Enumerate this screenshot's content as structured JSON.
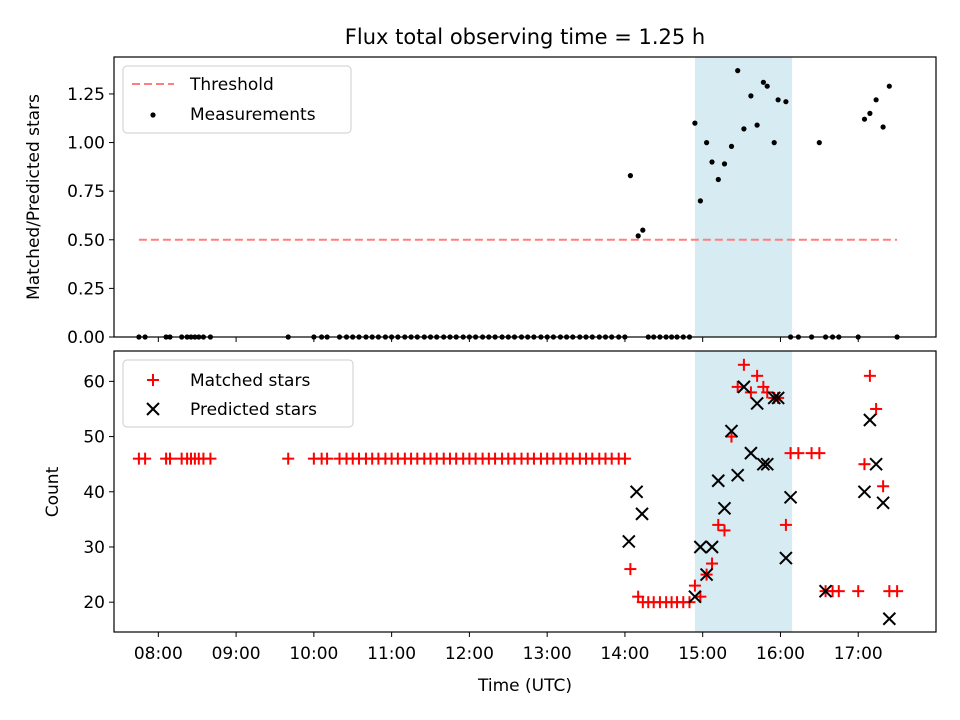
{
  "figure_title": "Flux total observing time = 1.25 h",
  "colors": {
    "threshold": "#ff7f7f",
    "measurement": "#000000",
    "matched": "#ff0000",
    "predicted": "#000000",
    "span_fill": "#add8e6"
  },
  "chart_data": [
    {
      "type": "scatter",
      "panel": "top",
      "title": "Flux total observing time = 1.25 h",
      "xlabel": "",
      "ylabel": "Matched/Predicted stars",
      "xlim": [
        7.43,
        18.0
      ],
      "ylim": [
        0,
        1.44
      ],
      "yticks": [
        0,
        0.25,
        0.5,
        0.75,
        1.0,
        1.25
      ],
      "ytick_labels": [
        "0.00",
        "0.25",
        "0.50",
        "0.75",
        "1.00",
        "1.25"
      ],
      "legend": {
        "position": "top-left",
        "entries": [
          "Threshold",
          "Measurements"
        ]
      },
      "highlight_span": {
        "x": [
          14.9,
          16.15
        ]
      },
      "threshold": {
        "name": "Threshold",
        "y": 0.5,
        "x": [
          7.75,
          17.5
        ]
      },
      "series": [
        {
          "name": "Measurements",
          "x": [
            7.75,
            7.83,
            8.1,
            8.15,
            8.3,
            8.37,
            8.42,
            8.47,
            8.52,
            8.58,
            8.67,
            9.67,
            10.0,
            10.1,
            10.17,
            10.33,
            10.42,
            10.5,
            10.58,
            10.67,
            10.75,
            10.83,
            10.92,
            11.0,
            11.08,
            11.17,
            11.25,
            11.33,
            11.42,
            11.5,
            11.58,
            11.67,
            11.75,
            11.83,
            11.92,
            12.0,
            12.08,
            12.17,
            12.25,
            12.33,
            12.42,
            12.5,
            12.58,
            12.67,
            12.75,
            12.83,
            12.92,
            13.0,
            13.08,
            13.17,
            13.25,
            13.33,
            13.42,
            13.5,
            13.58,
            13.67,
            13.75,
            13.83,
            13.92,
            14.0,
            14.07,
            14.17,
            14.23,
            14.3,
            14.37,
            14.45,
            14.53,
            14.6,
            14.67,
            14.75,
            14.83,
            14.9,
            14.97,
            15.05,
            15.12,
            15.2,
            15.28,
            15.37,
            15.45,
            15.53,
            15.62,
            15.7,
            15.78,
            15.83,
            15.92,
            15.97,
            16.07,
            16.13,
            16.23,
            16.4,
            16.5,
            16.58,
            16.67,
            16.75,
            17.0,
            17.08,
            17.15,
            17.23,
            17.32,
            17.4,
            17.5
          ],
          "y": [
            0,
            0,
            0,
            0,
            0,
            0,
            0,
            0,
            0,
            0,
            0,
            0,
            0,
            0,
            0,
            0,
            0,
            0,
            0,
            0,
            0,
            0,
            0,
            0,
            0,
            0,
            0,
            0,
            0,
            0,
            0,
            0,
            0,
            0,
            0,
            0,
            0,
            0,
            0,
            0,
            0,
            0,
            0,
            0,
            0,
            0,
            0,
            0,
            0,
            0,
            0,
            0,
            0,
            0,
            0,
            0,
            0,
            0,
            0,
            0,
            0.83,
            0.52,
            0.55,
            0,
            0,
            0,
            0,
            0,
            0,
            0,
            0,
            1.1,
            0.7,
            1.0,
            0.9,
            0.81,
            0.89,
            0.98,
            1.37,
            1.07,
            1.24,
            1.09,
            1.31,
            1.29,
            1.0,
            1.22,
            1.21,
            0,
            0,
            0,
            1.0,
            0,
            0,
            0,
            0,
            1.12,
            1.15,
            1.22,
            1.08,
            1.29,
            0
          ]
        }
      ]
    },
    {
      "type": "scatter",
      "panel": "bottom",
      "title": "",
      "xlabel": "Time (UTC)",
      "ylabel": "Count",
      "xlim": [
        7.43,
        18.0
      ],
      "ylim": [
        14.6,
        65.5
      ],
      "xticks": [
        8,
        9,
        10,
        11,
        12,
        13,
        14,
        15,
        16,
        17
      ],
      "xtick_labels": [
        "08:00",
        "09:00",
        "10:00",
        "11:00",
        "12:00",
        "13:00",
        "14:00",
        "15:00",
        "16:00",
        "17:00"
      ],
      "yticks": [
        20,
        30,
        40,
        50,
        60
      ],
      "ytick_labels": [
        "20",
        "30",
        "40",
        "50",
        "60"
      ],
      "legend": {
        "position": "top-left",
        "entries": [
          "Matched stars",
          "Predicted stars"
        ]
      },
      "highlight_span": {
        "x": [
          14.9,
          16.15
        ]
      },
      "series": [
        {
          "name": "Matched stars",
          "marker": "+",
          "x": [
            7.75,
            7.83,
            8.1,
            8.15,
            8.3,
            8.37,
            8.42,
            8.47,
            8.52,
            8.58,
            8.67,
            9.67,
            10.0,
            10.1,
            10.17,
            10.33,
            10.42,
            10.5,
            10.58,
            10.67,
            10.75,
            10.83,
            10.92,
            11.0,
            11.08,
            11.17,
            11.25,
            11.33,
            11.42,
            11.5,
            11.58,
            11.67,
            11.75,
            11.83,
            11.92,
            12.0,
            12.08,
            12.17,
            12.25,
            12.33,
            12.42,
            12.5,
            12.58,
            12.67,
            12.75,
            12.83,
            12.92,
            13.0,
            13.08,
            13.17,
            13.25,
            13.33,
            13.42,
            13.5,
            13.58,
            13.67,
            13.75,
            13.83,
            13.92,
            14.0,
            14.07,
            14.17,
            14.23,
            14.3,
            14.37,
            14.45,
            14.53,
            14.6,
            14.67,
            14.75,
            14.83,
            14.9,
            14.97,
            15.05,
            15.12,
            15.2,
            15.28,
            15.37,
            15.45,
            15.53,
            15.62,
            15.7,
            15.78,
            15.83,
            15.92,
            15.97,
            16.07,
            16.13,
            16.23,
            16.4,
            16.5,
            16.58,
            16.67,
            16.75,
            17.0,
            17.08,
            17.15,
            17.23,
            17.32,
            17.4,
            17.5
          ],
          "y": [
            46,
            46,
            46,
            46,
            46,
            46,
            46,
            46,
            46,
            46,
            46,
            46,
            46,
            46,
            46,
            46,
            46,
            46,
            46,
            46,
            46,
            46,
            46,
            46,
            46,
            46,
            46,
            46,
            46,
            46,
            46,
            46,
            46,
            46,
            46,
            46,
            46,
            46,
            46,
            46,
            46,
            46,
            46,
            46,
            46,
            46,
            46,
            46,
            46,
            46,
            46,
            46,
            46,
            46,
            46,
            46,
            46,
            46,
            46,
            46,
            26,
            21,
            20,
            20,
            20,
            20,
            20,
            20,
            20,
            20,
            20,
            23,
            21,
            25,
            27,
            34,
            33,
            50,
            59,
            63,
            58,
            61,
            59,
            58,
            57,
            57,
            34,
            47,
            47,
            47,
            47,
            22,
            22,
            22,
            22,
            45,
            61,
            55,
            41,
            22,
            22
          ]
        },
        {
          "name": "Predicted stars",
          "marker": "x",
          "x": [
            14.05,
            14.15,
            14.22,
            14.9,
            14.97,
            15.05,
            15.12,
            15.2,
            15.28,
            15.37,
            15.45,
            15.53,
            15.62,
            15.7,
            15.78,
            15.83,
            15.92,
            15.97,
            16.07,
            16.13,
            16.58,
            17.08,
            17.15,
            17.23,
            17.32,
            17.4
          ],
          "y": [
            31,
            40,
            36,
            21,
            30,
            25,
            30,
            42,
            37,
            51,
            43,
            59,
            47,
            56,
            45,
            45,
            57,
            57,
            28,
            39,
            22,
            40,
            53,
            45,
            38,
            17
          ]
        }
      ]
    }
  ]
}
